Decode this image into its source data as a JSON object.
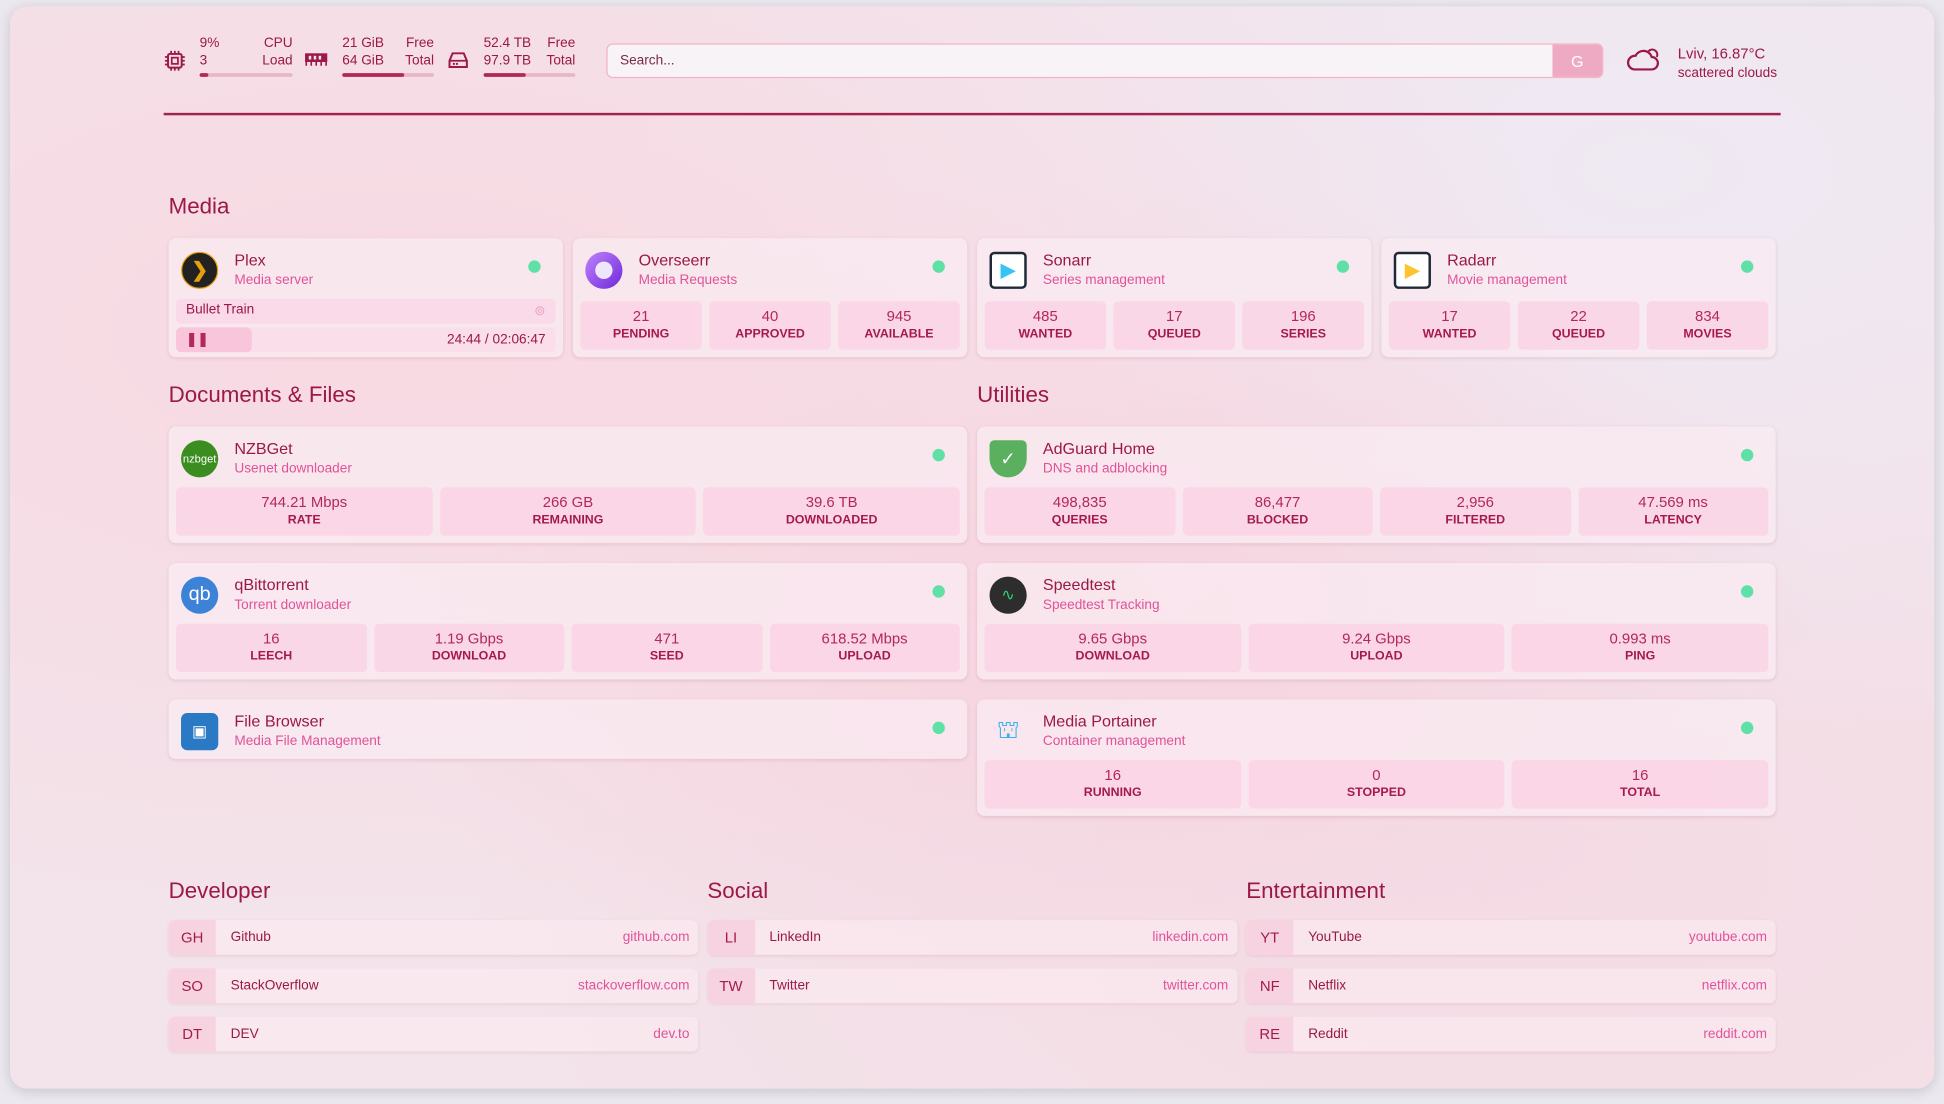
{
  "header": {
    "cpu": {
      "value": "9%",
      "sub": "3",
      "label1": "CPU",
      "label2": "Load",
      "percent": 9
    },
    "memory": {
      "value": "21 GiB",
      "sub": "64 GiB",
      "label1": "Free",
      "label2": "Total",
      "percent": 67
    },
    "disk": {
      "value": "52.4 TB",
      "sub": "97.9 TB",
      "label1": "Free",
      "label2": "Total",
      "percent": 46
    },
    "search": {
      "placeholder": "Search...",
      "provider_button": "G"
    },
    "weather": {
      "location_temp": "Lviv, 16.87°C",
      "condition": "scattered clouds",
      "icon": "cloud-sun-icon"
    }
  },
  "colors": {
    "accent": "#9b1848",
    "subtitle": "#e0539a",
    "status_online": "#5fe0a7"
  },
  "sections": {
    "media": {
      "title": "Media",
      "cards": [
        {
          "name": "Plex",
          "desc": "Media server",
          "icon": "plex-icon",
          "now_playing": {
            "title": "Bullet Train",
            "time": "24:44 / 02:06:47",
            "progress_percent": 20
          }
        },
        {
          "name": "Overseerr",
          "desc": "Media Requests",
          "icon": "overseerr-icon",
          "stats": [
            {
              "v": "21",
              "l": "PENDING"
            },
            {
              "v": "40",
              "l": "APPROVED"
            },
            {
              "v": "945",
              "l": "AVAILABLE"
            }
          ]
        },
        {
          "name": "Sonarr",
          "desc": "Series management",
          "icon": "sonarr-icon",
          "stats": [
            {
              "v": "485",
              "l": "WANTED"
            },
            {
              "v": "17",
              "l": "QUEUED"
            },
            {
              "v": "196",
              "l": "SERIES"
            }
          ]
        },
        {
          "name": "Radarr",
          "desc": "Movie management",
          "icon": "radarr-icon",
          "stats": [
            {
              "v": "17",
              "l": "WANTED"
            },
            {
              "v": "22",
              "l": "QUEUED"
            },
            {
              "v": "834",
              "l": "MOVIES"
            }
          ]
        }
      ]
    },
    "docs": {
      "title": "Documents & Files",
      "cards": [
        {
          "name": "NZBGet",
          "desc": "Usenet downloader",
          "icon": "nzbget-icon",
          "icon_text": "nzbget",
          "stats": [
            {
              "v": "744.21 Mbps",
              "l": "RATE"
            },
            {
              "v": "266 GB",
              "l": "REMAINING"
            },
            {
              "v": "39.6 TB",
              "l": "DOWNLOADED"
            }
          ]
        },
        {
          "name": "qBittorrent",
          "desc": "Torrent downloader",
          "icon": "qbittorrent-icon",
          "icon_text": "qb",
          "stats": [
            {
              "v": "16",
              "l": "LEECH"
            },
            {
              "v": "1.19 Gbps",
              "l": "DOWNLOAD"
            },
            {
              "v": "471",
              "l": "SEED"
            },
            {
              "v": "618.52 Mbps",
              "l": "UPLOAD"
            }
          ]
        },
        {
          "name": "File Browser",
          "desc": "Media File Management",
          "icon": "filebrowser-icon"
        }
      ]
    },
    "utilities": {
      "title": "Utilities",
      "cards": [
        {
          "name": "AdGuard Home",
          "desc": "DNS and adblocking",
          "icon": "adguard-shield-icon",
          "stats": [
            {
              "v": "498,835",
              "l": "QUERIES"
            },
            {
              "v": "86,477",
              "l": "BLOCKED"
            },
            {
              "v": "2,956",
              "l": "FILTERED"
            },
            {
              "v": "47.569 ms",
              "l": "LATENCY"
            }
          ]
        },
        {
          "name": "Speedtest",
          "desc": "Speedtest Tracking",
          "icon": "speedtest-pulse-icon",
          "stats": [
            {
              "v": "9.65 Gbps",
              "l": "DOWNLOAD"
            },
            {
              "v": "9.24 Gbps",
              "l": "UPLOAD"
            },
            {
              "v": "0.993 ms",
              "l": "PING"
            }
          ]
        },
        {
          "name": "Media Portainer",
          "desc": "Container management",
          "icon": "portainer-crane-icon",
          "stats": [
            {
              "v": "16",
              "l": "RUNNING"
            },
            {
              "v": "0",
              "l": "STOPPED"
            },
            {
              "v": "16",
              "l": "TOTAL"
            }
          ]
        }
      ]
    }
  },
  "bookmarks": [
    {
      "title": "Developer",
      "items": [
        {
          "abbr": "GH",
          "name": "Github",
          "url": "github.com"
        },
        {
          "abbr": "SO",
          "name": "StackOverflow",
          "url": "stackoverflow.com"
        },
        {
          "abbr": "DT",
          "name": "DEV",
          "url": "dev.to"
        }
      ]
    },
    {
      "title": "Social",
      "items": [
        {
          "abbr": "LI",
          "name": "LinkedIn",
          "url": "linkedin.com"
        },
        {
          "abbr": "TW",
          "name": "Twitter",
          "url": "twitter.com"
        }
      ]
    },
    {
      "title": "Entertainment",
      "items": [
        {
          "abbr": "YT",
          "name": "YouTube",
          "url": "youtube.com"
        },
        {
          "abbr": "NF",
          "name": "Netflix",
          "url": "netflix.com"
        },
        {
          "abbr": "RE",
          "name": "Reddit",
          "url": "reddit.com"
        }
      ]
    }
  ]
}
